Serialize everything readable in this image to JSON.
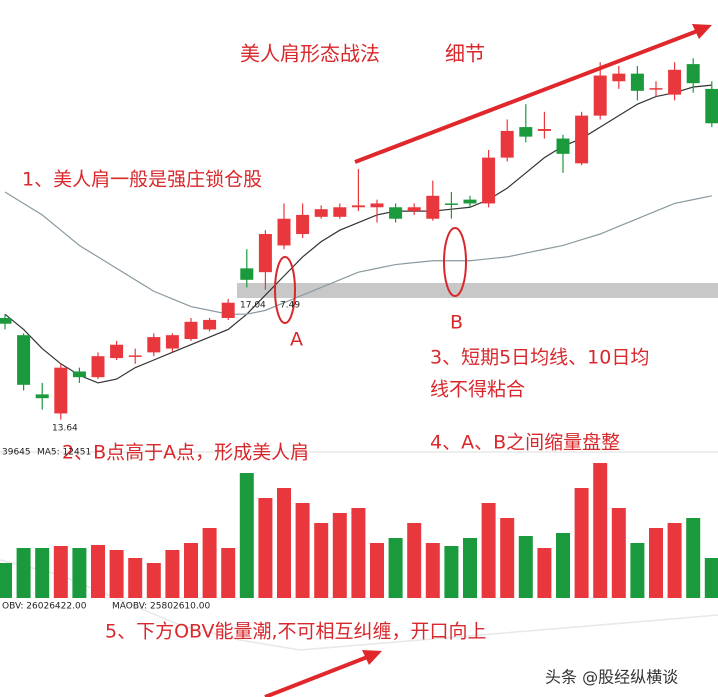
{
  "chart_data": [
    {
      "type": "candlestick",
      "title": "美人肩形态战法",
      "subtitle": "细节",
      "up_color": "#e8383d",
      "down_color": "#1a9a3c",
      "ylim": [
        13,
        24
      ],
      "open": [
        16.3,
        15.85,
        14.3,
        13.8,
        14.9,
        14.75,
        15.25,
        15.3,
        15.4,
        15.5,
        15.75,
        16.0,
        16.3,
        17.6,
        17.5,
        18.2,
        18.5,
        18.95,
        18.95,
        19.2,
        19.2,
        19.2,
        19.1,
        18.9,
        19.3,
        19.4,
        19.3,
        20.5,
        21.3,
        21.2,
        21.0,
        20.35,
        21.6,
        22.5,
        22.7,
        22.3,
        22.15,
        22.95,
        22.3
      ],
      "close": [
        16.15,
        14.55,
        14.2,
        15.0,
        14.75,
        15.3,
        15.6,
        15.32,
        15.8,
        15.85,
        16.2,
        16.25,
        16.7,
        17.3,
        18.5,
        18.9,
        19.0,
        19.15,
        19.2,
        19.25,
        19.3,
        18.9,
        19.2,
        19.5,
        19.28,
        19.3,
        20.5,
        21.2,
        21.05,
        21.25,
        20.6,
        21.6,
        22.65,
        22.7,
        22.25,
        22.32,
        22.8,
        22.45,
        21.4
      ],
      "high": [
        16.4,
        15.9,
        14.6,
        15.1,
        15.0,
        15.4,
        15.7,
        15.5,
        15.9,
        15.9,
        16.3,
        16.3,
        16.8,
        18.1,
        18.6,
        19.3,
        19.3,
        19.25,
        19.3,
        20.2,
        19.4,
        19.3,
        19.3,
        19.9,
        19.6,
        19.5,
        20.7,
        21.5,
        21.9,
        21.7,
        21.1,
        21.7,
        23.0,
        22.9,
        22.9,
        22.5,
        23.0,
        23.1,
        22.5
      ],
      "low": [
        16.0,
        14.4,
        13.9,
        13.64,
        14.6,
        14.7,
        15.2,
        15.1,
        15.3,
        15.4,
        15.7,
        15.95,
        16.25,
        17.1,
        17.04,
        18.1,
        18.4,
        18.9,
        18.9,
        19.1,
        18.8,
        18.8,
        19.0,
        18.85,
        18.9,
        19.2,
        19.2,
        20.4,
        20.9,
        21.0,
        20.1,
        20.3,
        21.5,
        22.3,
        22.0,
        22.1,
        22.0,
        22.2,
        21.3
      ],
      "series": [
        {
          "color": "#333333",
          "values": [
            16.4,
            16.0,
            15.5,
            15.1,
            14.8,
            14.6,
            14.7,
            15.0,
            15.2,
            15.4,
            15.6,
            15.8,
            16.0,
            16.4,
            16.9,
            17.4,
            17.9,
            18.3,
            18.6,
            18.8,
            19.0,
            19.1,
            19.1,
            19.1,
            19.15,
            19.2,
            19.4,
            19.7,
            20.1,
            20.5,
            20.8,
            21.0,
            21.3,
            21.6,
            21.9,
            22.1,
            22.2,
            22.35,
            22.4
          ]
        },
        {
          "color": "#8a9aa0",
          "values": [
            19.6,
            19.3,
            19.0,
            18.6,
            18.2,
            17.9,
            17.6,
            17.3,
            17.0,
            16.8,
            16.6,
            16.5,
            16.4,
            16.4,
            16.5,
            16.7,
            16.9,
            17.1,
            17.3,
            17.5,
            17.6,
            17.7,
            17.75,
            17.8,
            17.8,
            17.8,
            17.85,
            17.9,
            18.0,
            18.1,
            18.2,
            18.35,
            18.5,
            18.7,
            18.9,
            19.1,
            19.3,
            19.4,
            19.5
          ]
        }
      ],
      "price_labels": [
        "7.49"
      ],
      "indicator_labels": [
        "39645",
        "MA5: 12451"
      ],
      "annotations": [
        "1、美人肩一般是强庄锁仓股",
        "A",
        "B",
        "3、短期5日均线、10日均",
        "线不得粘合",
        "2、B点高于A点，形成美人肩",
        "4、A、B之间缩量盘整"
      ]
    },
    {
      "type": "bar",
      "ylim": [
        0,
        140
      ],
      "values": [
        35,
        50,
        50,
        52,
        50,
        53,
        48,
        40,
        35,
        48,
        55,
        70,
        50,
        125,
        100,
        110,
        95,
        75,
        85,
        90,
        55,
        60,
        75,
        55,
        52,
        60,
        95,
        80,
        62,
        50,
        65,
        110,
        135,
        90,
        55,
        70,
        75,
        80,
        40
      ],
      "indicator_labels": [
        "OBV: 26026422.00",
        "MAOBV: 25802610.00"
      ],
      "annotation": "5、下方OBV能量潮,不可相互纠缠，开口向上"
    }
  ],
  "watermark": "头条 @股经纵横谈"
}
